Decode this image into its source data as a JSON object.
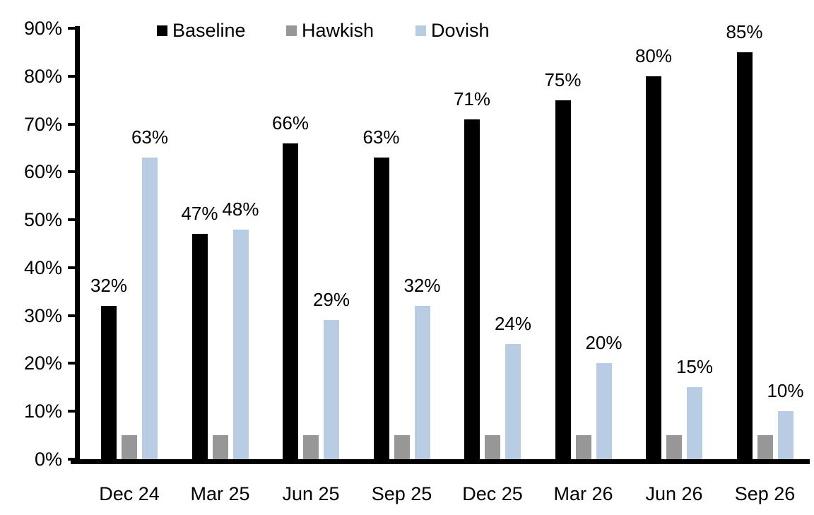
{
  "chart_data": {
    "type": "bar",
    "title": "",
    "xlabel": "",
    "ylabel": "",
    "categories": [
      "Dec 24",
      "Mar 25",
      "Jun 25",
      "Sep 25",
      "Dec 25",
      "Mar 26",
      "Jun 26",
      "Sep 26"
    ],
    "series": [
      {
        "name": "Baseline",
        "color": "#000000",
        "values": [
          32,
          47,
          66,
          63,
          71,
          75,
          80,
          85
        ],
        "show_data_labels": true,
        "labels": [
          "32%",
          "47%",
          "66%",
          "63%",
          "71%",
          "75%",
          "80%",
          "85%"
        ]
      },
      {
        "name": "Hawkish",
        "color": "#979797",
        "values": [
          5,
          5,
          5,
          5,
          5,
          5,
          5,
          5
        ],
        "show_data_labels": false,
        "labels": []
      },
      {
        "name": "Dovish",
        "color": "#B8CCE4",
        "values": [
          63,
          48,
          29,
          32,
          24,
          20,
          15,
          10
        ],
        "show_data_labels": true,
        "labels": [
          "63%",
          "48%",
          "29%",
          "32%",
          "24%",
          "20%",
          "15%",
          "10%"
        ]
      }
    ],
    "ylim": [
      0,
      90
    ],
    "yticks": [
      "0%",
      "10%",
      "20%",
      "30%",
      "40%",
      "50%",
      "60%",
      "70%",
      "80%",
      "90%"
    ],
    "grid": false,
    "legend_position": "top",
    "axis_color": "#000000",
    "text_color": "#000000",
    "background_color": "#ffffff"
  }
}
